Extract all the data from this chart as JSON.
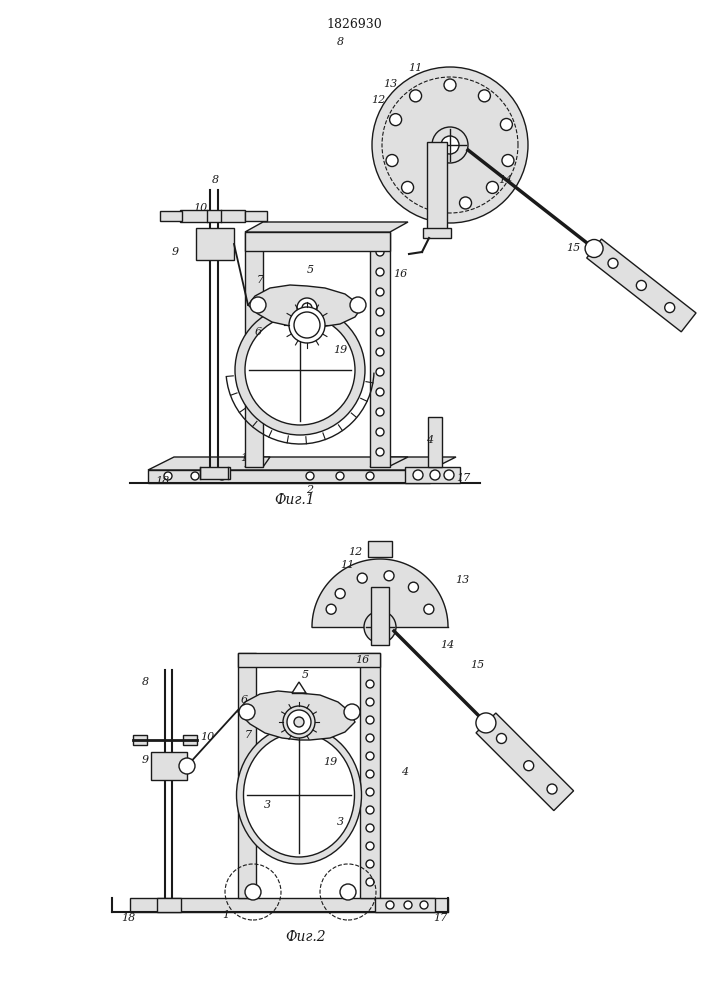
{
  "title": "1826930",
  "fig1_label": "Фиг.1",
  "fig2_label": "Фиг.2",
  "bg_color": "#ffffff",
  "lc": "#1a1a1a",
  "lw": 1.0
}
